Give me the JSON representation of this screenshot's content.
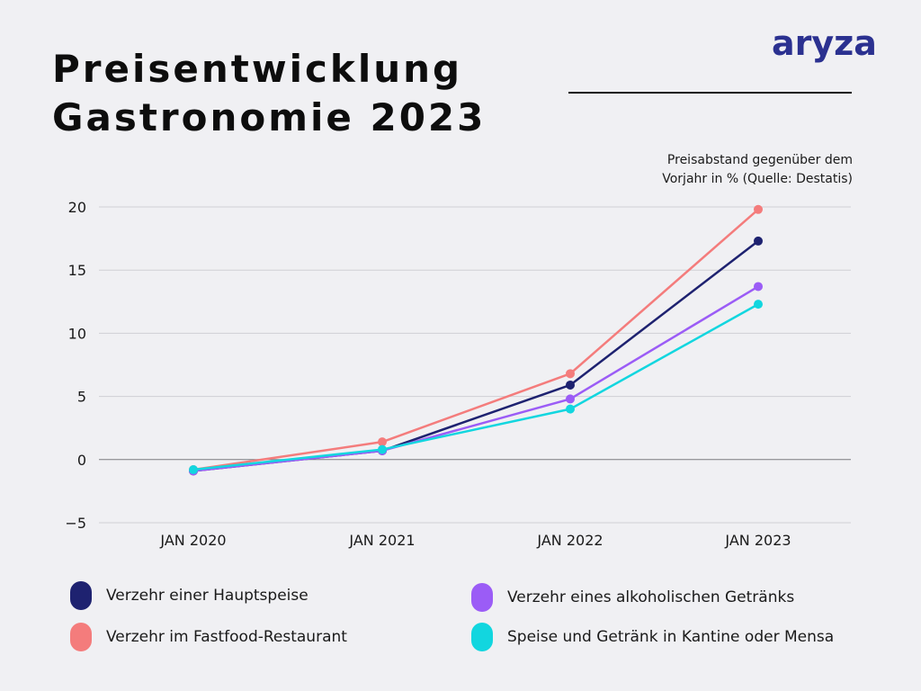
{
  "header": {
    "title_line1": "Preisentwicklung",
    "title_line2": "Gastronomie 2023",
    "logo_text": "aryza",
    "note_line1": "Preisabstand gegenüber dem",
    "note_line2": "Vorjahr in % (Quelle: Destatis)"
  },
  "colors": {
    "background": "#f0f0f3",
    "logo": "#2b3190",
    "grid": "#cfcfd4",
    "zero_line": "#7b7b80"
  },
  "chart_data": {
    "type": "line",
    "title": "Preisentwicklung Gastronomie 2023",
    "ylabel": "Preisabstand gegenüber dem Vorjahr in % (Quelle: Destatis)",
    "xlabel": "",
    "categories": [
      "JAN 2020",
      "JAN 2021",
      "JAN 2022",
      "JAN 2023"
    ],
    "yticks": [
      "20",
      "15",
      "10",
      "5",
      "0",
      "−5"
    ],
    "ylim": [
      -5,
      20
    ],
    "grid": true,
    "legend_position": "bottom",
    "series": [
      {
        "name": "Verzehr einer Hauptspeise",
        "color": "#1e2270",
        "values": [
          -0.9,
          0.7,
          5.9,
          17.3
        ]
      },
      {
        "name": "Verzehr im Fastfood-Restaurant",
        "color": "#f47c7c",
        "values": [
          -0.8,
          1.4,
          6.8,
          19.8
        ]
      },
      {
        "name": "Verzehr eines alkoholischen Getränks",
        "color": "#9b5cf6",
        "values": [
          -0.9,
          0.7,
          4.8,
          13.7
        ]
      },
      {
        "name": "Speise und Getränk in Kantine oder Mensa",
        "color": "#12d6df",
        "values": [
          -0.8,
          0.8,
          4.0,
          12.3
        ]
      }
    ]
  }
}
